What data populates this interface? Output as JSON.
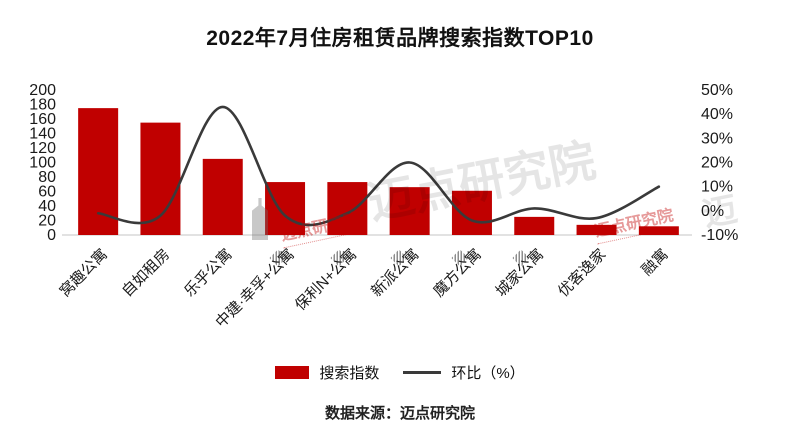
{
  "header": {
    "title": "2022年7月住房租赁品牌搜索指数TOP10"
  },
  "footer": {
    "source": "数据来源：迈点研究院"
  },
  "legend": {
    "items": [
      {
        "label": "搜索指数",
        "swatch": "bar"
      },
      {
        "label": "环比（%）",
        "swatch": "line"
      }
    ]
  },
  "watermark": {
    "brand_text": "迈点研究院",
    "edge_text": "迈"
  },
  "colors": {
    "bar": "#C00000",
    "line": "#3A3A3A",
    "axis_text": "#1A1A1A",
    "baseline": "#D9D9D9"
  },
  "chart_data": {
    "type": "combo-bar-line",
    "title": "2022年7月住房租赁品牌搜索指数TOP10",
    "categories": [
      "窝趣公寓",
      "自如租房",
      "乐乎公寓",
      "中建·幸孚+公寓",
      "保利N+公寓",
      "新派公寓",
      "魔方公寓",
      "城家公寓",
      "优客逸家",
      "融寓"
    ],
    "series": [
      {
        "name": "搜索指数",
        "type": "bar",
        "axis": "left",
        "values": [
          175,
          155,
          105,
          73,
          73,
          66,
          61,
          25,
          14,
          12
        ]
      },
      {
        "name": "环比（%）",
        "type": "line",
        "axis": "right",
        "values": [
          -1,
          -2,
          43,
          -2,
          -1,
          20,
          -4,
          1,
          -3,
          10
        ]
      }
    ],
    "left_axis": {
      "min": 0,
      "max": 200,
      "step": 20
    },
    "right_axis": {
      "min": -10,
      "max": 50,
      "step": 10,
      "suffix": "%"
    },
    "grid": false,
    "legend_position": "bottom"
  }
}
